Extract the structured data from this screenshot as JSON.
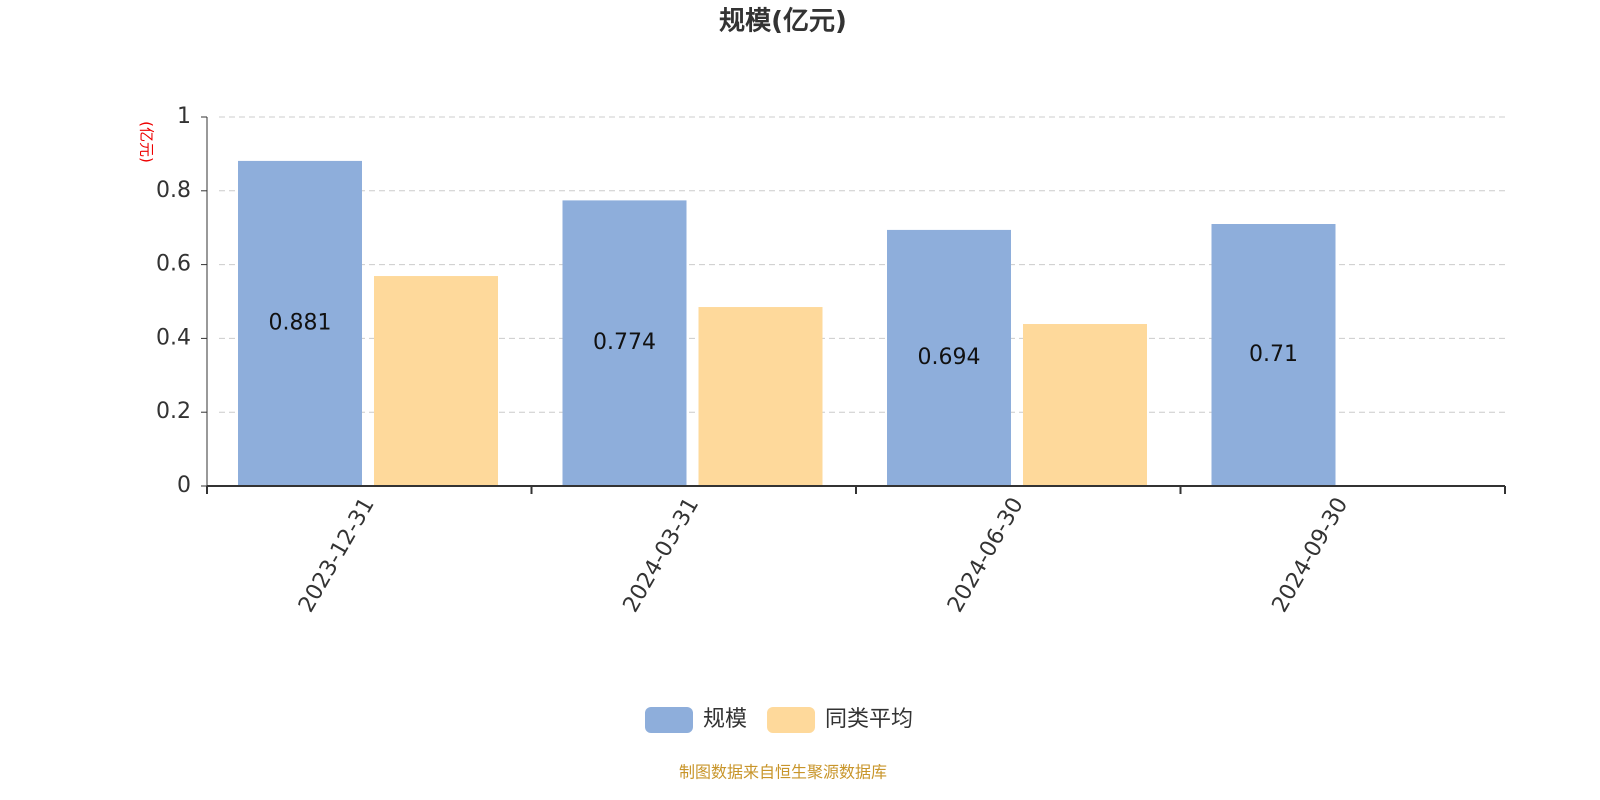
{
  "chart_data": {
    "type": "bar",
    "title": "规模(亿元)",
    "y_unit": "(亿元)",
    "categories": [
      "2023-12-31",
      "2024-03-31",
      "2024-06-30",
      "2024-09-30"
    ],
    "series": [
      {
        "name": "规模",
        "color": "#8eaedb",
        "values": [
          0.881,
          0.774,
          0.694,
          0.71
        ],
        "show_labels": true
      },
      {
        "name": "同类平均",
        "color": "#fed99b",
        "values": [
          0.569,
          0.485,
          0.439,
          null
        ],
        "show_labels": false
      }
    ],
    "ylim": [
      0,
      1
    ],
    "yticks": [
      0,
      0.2,
      0.4,
      0.6,
      0.8,
      1
    ],
    "grid": true,
    "legend": "bottom",
    "source": "制图数据来自恒生聚源数据库"
  }
}
